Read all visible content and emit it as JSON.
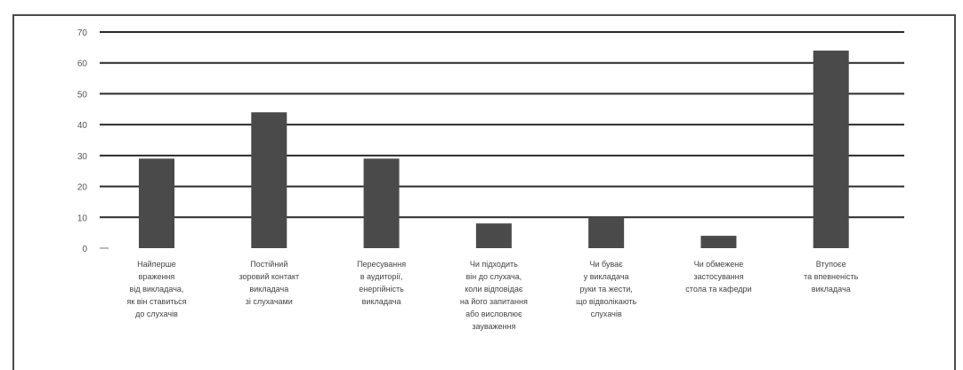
{
  "chart_data": {
    "type": "bar",
    "title": "",
    "xlabel": "",
    "ylabel": "",
    "ylim": [
      0,
      70
    ],
    "yticks": [
      0,
      10,
      20,
      30,
      40,
      50,
      60,
      70
    ],
    "grid": true,
    "categories": [
      "Найперше враження від викладача, як він ставиться до слухачів",
      "Постійний зоровий контакт викладача зі слухачами",
      "Пересування в аудиторії, енергійність викладача",
      "Чи підходить він до слухача, коли відповідає на його запитання або висловлює зауваження",
      "Чи буває у викладача руки та жести, що відволікають слухачів",
      "Чи обмежене застосування стола та кафедри",
      "Втупоєе та впевненість викладача"
    ],
    "category_lines": [
      [
        "Найперше",
        "враження",
        "від викладача,",
        "як він ставиться",
        "до слухачів"
      ],
      [
        "Постійний",
        "зоровий контакт",
        "викладача",
        "зі слухачами"
      ],
      [
        "Пересування",
        "в аудиторії,",
        "енергійність",
        "викладача"
      ],
      [
        "Чи підходить",
        "він до слухача,",
        "коли відповідає",
        "на його запитання",
        "або висловлює",
        "зауваження"
      ],
      [
        "Чи буває",
        "у викладача",
        "руки та жести,",
        "що відволікають",
        "слухачів"
      ],
      [
        "Чи обмежене",
        "застосування",
        "стола та кафедри"
      ],
      [
        "Втупоєе",
        "та впевненість",
        "викладача"
      ]
    ],
    "values": [
      29,
      44,
      29,
      8,
      10,
      4,
      64
    ],
    "bar_color": "#4a4a4a",
    "grid_color": "#2a2a2a"
  }
}
